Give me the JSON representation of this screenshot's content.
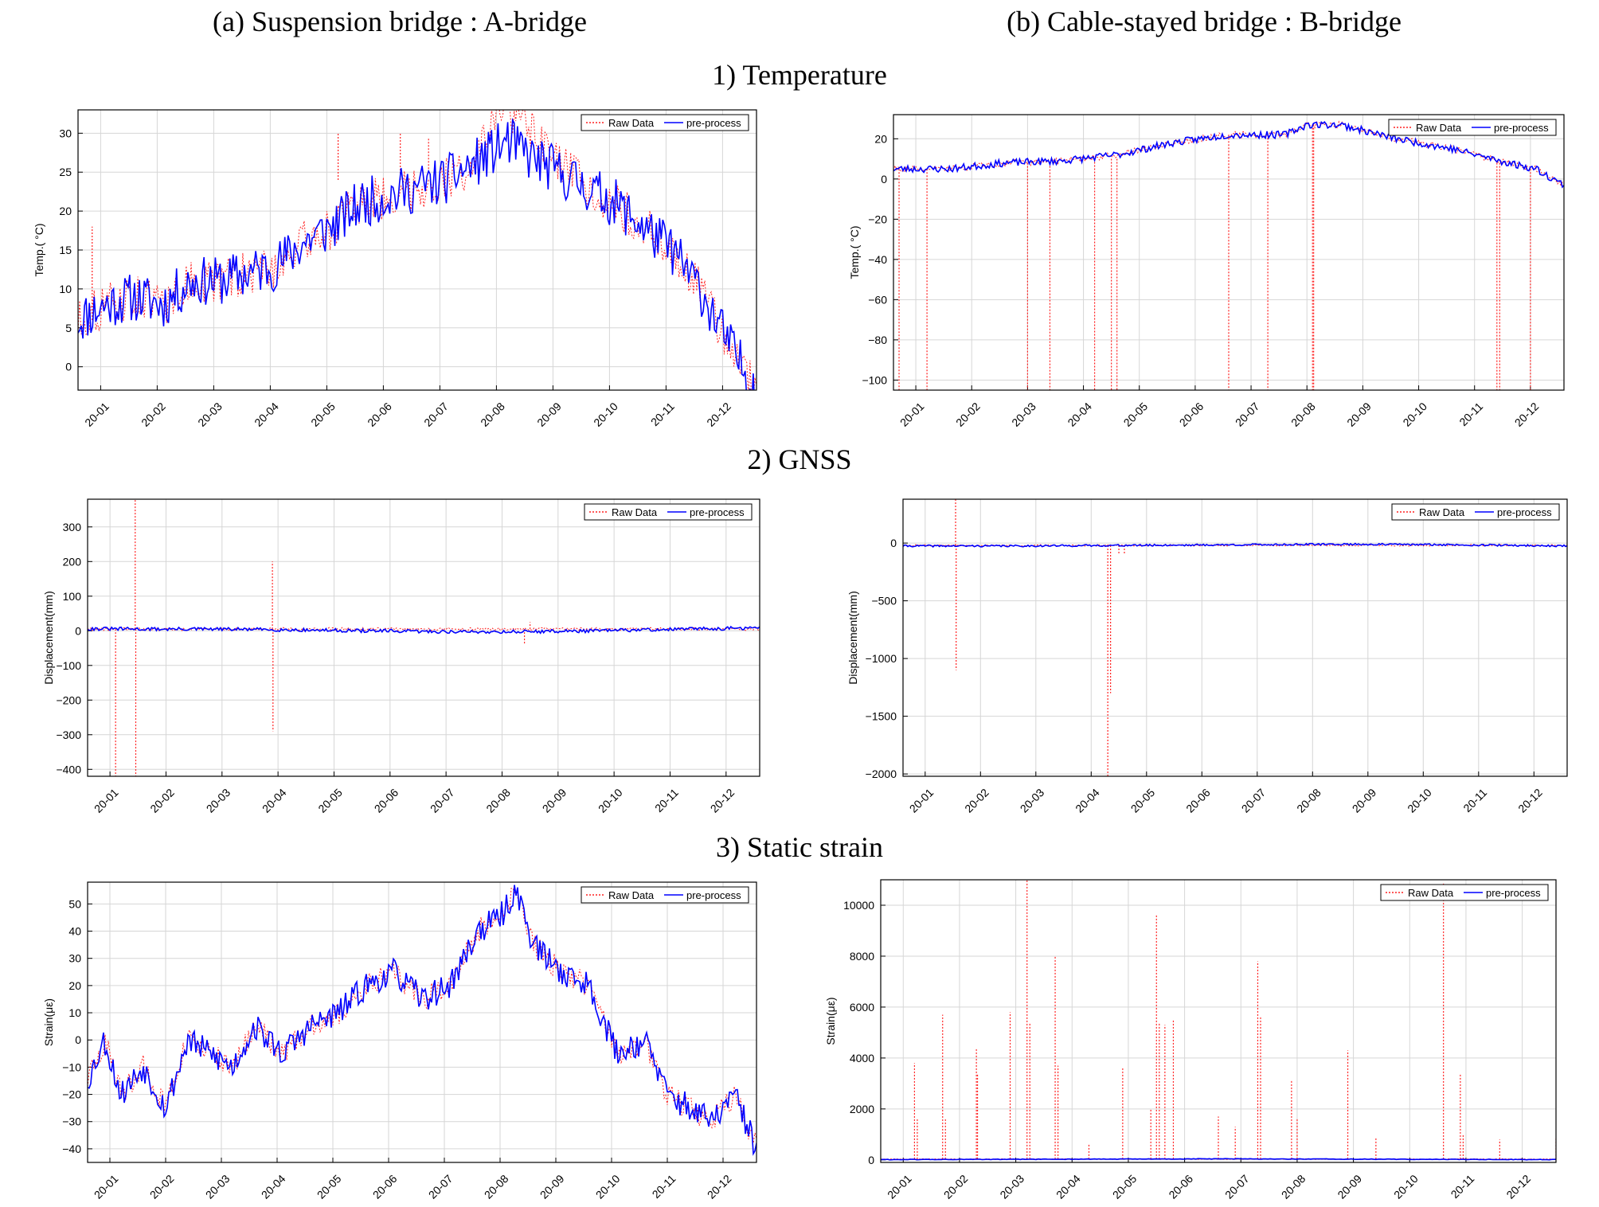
{
  "headings": {
    "col_a": "(a) Suspension bridge : A-bridge",
    "col_b": "(b) Cable-stayed bridge : B-bridge",
    "row_1": "1) Temperature",
    "row_2": "2) GNSS",
    "row_3": "3) Static strain"
  },
  "colors": {
    "raw": "#ff2020",
    "processed": "#0000ff",
    "grid": "#d6d6d6",
    "axis": "#000000"
  },
  "chart_data": [
    {
      "id": "temp-a",
      "type": "line",
      "ylabel": "Temp.( °C)",
      "ylim": [
        -3,
        33
      ],
      "yticks": [
        0,
        5,
        10,
        15,
        20,
        25,
        30
      ],
      "xlim": [
        0,
        12
      ],
      "xticks": [
        "20-01",
        "20-02",
        "20-03",
        "20-04",
        "20-05",
        "20-06",
        "20-07",
        "20-08",
        "20-09",
        "20-10",
        "20-11",
        "20-12"
      ],
      "legend": [
        "Raw Data",
        "pre-process"
      ],
      "legend_position": "top-right",
      "grid": true,
      "series": [
        {
          "name": "Raw Data",
          "style": "dotted",
          "x": [
            0.0,
            0.5,
            1.0,
            1.5,
            2.0,
            2.5,
            3.0,
            3.5,
            4.0,
            4.5,
            5.0,
            5.5,
            6.0,
            6.5,
            7.0,
            7.4,
            7.6,
            7.8,
            8.0,
            8.5,
            9.0,
            9.5,
            10.0,
            10.5,
            11.0,
            11.5,
            12.0
          ],
          "y": [
            6,
            8,
            9,
            8,
            11,
            11,
            12,
            13,
            16,
            18,
            21,
            22,
            23,
            24,
            26,
            32,
            33,
            32,
            30,
            26,
            23,
            21,
            18,
            15,
            10,
            3,
            -3
          ],
          "spikes": [
            [
              0.25,
              6,
              18
            ],
            [
              4.6,
              24,
              30
            ],
            [
              5.7,
              24,
              30
            ],
            [
              6.2,
              25,
              29.5
            ]
          ]
        },
        {
          "name": "pre-process",
          "style": "solid",
          "x": [
            0.0,
            0.5,
            1.0,
            1.5,
            2.0,
            2.5,
            3.0,
            3.5,
            4.0,
            4.5,
            5.0,
            5.5,
            6.0,
            6.5,
            7.0,
            7.4,
            7.6,
            7.8,
            8.0,
            8.5,
            9.0,
            9.5,
            10.0,
            10.5,
            11.0,
            11.5,
            12.0
          ],
          "y": [
            6,
            8,
            9,
            8,
            11,
            11,
            12,
            13,
            16,
            18,
            21,
            22,
            23,
            24,
            26,
            28,
            29,
            28,
            27,
            25,
            23,
            21,
            18,
            15,
            10,
            3,
            -3
          ],
          "noise": 3.2,
          "n": 420,
          "seed": 11
        }
      ]
    },
    {
      "id": "temp-b",
      "type": "line",
      "ylabel": "Temp.( °C)",
      "ylim": [
        -105,
        32
      ],
      "yticks": [
        -100,
        -80,
        -60,
        -40,
        -20,
        0,
        20
      ],
      "xlim": [
        0,
        12
      ],
      "xticks": [
        "20-01",
        "20-02",
        "20-03",
        "20-04",
        "20-05",
        "20-06",
        "20-07",
        "20-08",
        "20-09",
        "20-10",
        "20-11",
        "20-12"
      ],
      "legend": [
        "Raw Data",
        "pre-process"
      ],
      "legend_position": "top-right",
      "grid": true,
      "series": [
        {
          "name": "Raw Data",
          "style": "dotted",
          "x": [
            0.0,
            1.0,
            2.0,
            3.0,
            4.0,
            5.0,
            6.0,
            7.0,
            7.4,
            8.0,
            9.0,
            10.0,
            11.0,
            11.5,
            12.0
          ],
          "y": [
            5,
            5,
            8,
            9,
            12,
            18,
            22,
            22,
            27,
            27,
            20,
            15,
            8,
            5,
            -3
          ],
          "spikes": [
            [
              0.1,
              5,
              -105
            ],
            [
              0.6,
              5,
              -105
            ],
            [
              2.4,
              8,
              -105
            ],
            [
              2.8,
              8,
              -105
            ],
            [
              3.6,
              10,
              -105
            ],
            [
              3.9,
              10,
              -105
            ],
            [
              4.0,
              10,
              -105
            ],
            [
              6.0,
              22,
              -105
            ],
            [
              6.7,
              22,
              -105
            ],
            [
              7.5,
              27,
              -105
            ],
            [
              7.52,
              27,
              -105
            ],
            [
              10.8,
              8,
              -105
            ],
            [
              10.85,
              8,
              -105
            ],
            [
              11.4,
              5,
              -105
            ]
          ]
        },
        {
          "name": "pre-process",
          "style": "solid",
          "x": [
            0.0,
            1.0,
            2.0,
            3.0,
            4.0,
            5.0,
            6.0,
            7.0,
            7.4,
            8.0,
            9.0,
            10.0,
            11.0,
            11.5,
            12.0
          ],
          "y": [
            5,
            5,
            8,
            9,
            12,
            18,
            22,
            22,
            27,
            27,
            20,
            15,
            8,
            5,
            -3
          ],
          "noise": 1.8,
          "n": 420,
          "seed": 23
        }
      ]
    },
    {
      "id": "gnss-a",
      "type": "line",
      "ylabel": "Displacement(mm)",
      "ylim": [
        -420,
        380
      ],
      "yticks": [
        -400,
        -300,
        -200,
        -100,
        0,
        100,
        200,
        300
      ],
      "xlim": [
        0,
        12
      ],
      "xticks": [
        "20-01",
        "20-02",
        "20-03",
        "20-04",
        "20-05",
        "20-06",
        "20-07",
        "20-08",
        "20-09",
        "20-10",
        "20-11",
        "20-12"
      ],
      "legend": [
        "Raw Data",
        "pre-process"
      ],
      "legend_position": "top-right",
      "grid": true,
      "series": [
        {
          "name": "Raw Data",
          "style": "dotted",
          "x": [
            0,
            12
          ],
          "y": [
            5,
            5
          ],
          "spikes": [
            [
              0.5,
              5,
              -420
            ],
            [
              0.85,
              5,
              380
            ],
            [
              0.86,
              5,
              -420
            ],
            [
              3.3,
              5,
              200
            ],
            [
              3.31,
              5,
              -290
            ],
            [
              7.8,
              5,
              -40
            ],
            [
              7.9,
              5,
              25
            ]
          ]
        },
        {
          "name": "pre-process",
          "style": "solid",
          "x": [
            0,
            1,
            2,
            3,
            4,
            5,
            6,
            7,
            8,
            9,
            10,
            11,
            12
          ],
          "y": [
            6,
            5,
            5,
            4,
            2,
            0,
            -2,
            -3,
            -2,
            0,
            3,
            6,
            8
          ],
          "noise": 5,
          "n": 420,
          "seed": 31
        }
      ]
    },
    {
      "id": "gnss-b",
      "type": "line",
      "ylabel": "Displacement(mm)",
      "ylim": [
        -2020,
        380
      ],
      "yticks": [
        -2000,
        -1500,
        -1000,
        -500,
        0
      ],
      "xlim": [
        0,
        12
      ],
      "xticks": [
        "20-01",
        "20-02",
        "20-03",
        "20-04",
        "20-05",
        "20-06",
        "20-07",
        "20-08",
        "20-09",
        "20-10",
        "20-11",
        "20-12"
      ],
      "legend": [
        "Raw Data",
        "pre-process"
      ],
      "legend_position": "top-right",
      "grid": true,
      "series": [
        {
          "name": "Raw Data",
          "style": "dotted",
          "x": [
            0,
            12
          ],
          "y": [
            -20,
            -20
          ],
          "spikes": [
            [
              0.95,
              -20,
              380
            ],
            [
              0.96,
              -20,
              -1100
            ],
            [
              3.7,
              -20,
              -2020
            ],
            [
              3.75,
              -20,
              -1300
            ],
            [
              3.9,
              -20,
              -100
            ],
            [
              4.0,
              -20,
              -90
            ]
          ]
        },
        {
          "name": "pre-process",
          "style": "solid",
          "x": [
            0,
            2,
            4,
            6,
            8,
            10,
            12
          ],
          "y": [
            -25,
            -25,
            -20,
            -15,
            -10,
            -15,
            -25
          ],
          "noise": 8,
          "n": 420,
          "seed": 41
        }
      ]
    },
    {
      "id": "strain-a",
      "type": "line",
      "ylabel": "Strain(με)",
      "ylim": [
        -45,
        58
      ],
      "yticks": [
        -40,
        -30,
        -20,
        -10,
        0,
        10,
        20,
        30,
        40,
        50
      ],
      "xlim": [
        0,
        12
      ],
      "xticks": [
        "20-01",
        "20-02",
        "20-03",
        "20-04",
        "20-05",
        "20-06",
        "20-07",
        "20-08",
        "20-09",
        "20-10",
        "20-11",
        "20-12"
      ],
      "legend": [
        "Raw Data",
        "pre-process"
      ],
      "legend_position": "top-right",
      "grid": true,
      "series": [
        {
          "name": "Raw Data",
          "style": "dotted",
          "x": [
            0.0,
            0.3,
            0.6,
            1.0,
            1.4,
            1.8,
            2.2,
            2.6,
            3.0,
            3.5,
            4.0,
            4.5,
            5.0,
            5.5,
            6.0,
            6.5,
            7.0,
            7.4,
            7.7,
            8.0,
            8.5,
            9.0,
            9.5,
            10.0,
            10.4,
            10.8,
            11.2,
            11.6,
            12.0
          ],
          "y": [
            -15,
            0,
            -20,
            -10,
            -25,
            0,
            -5,
            -10,
            5,
            -5,
            5,
            10,
            20,
            25,
            15,
            20,
            40,
            45,
            55,
            35,
            25,
            20,
            -5,
            0,
            -20,
            -25,
            -30,
            -20,
            -40
          ],
          "spikes": []
        },
        {
          "name": "pre-process",
          "style": "solid",
          "x": [
            0.0,
            0.3,
            0.6,
            1.0,
            1.4,
            1.8,
            2.2,
            2.6,
            3.0,
            3.5,
            4.0,
            4.5,
            5.0,
            5.5,
            6.0,
            6.5,
            7.0,
            7.4,
            7.7,
            8.0,
            8.5,
            9.0,
            9.5,
            10.0,
            10.4,
            10.8,
            11.2,
            11.6,
            12.0
          ],
          "y": [
            -15,
            0,
            -20,
            -10,
            -25,
            0,
            -5,
            -10,
            5,
            -5,
            5,
            10,
            20,
            25,
            15,
            20,
            40,
            45,
            55,
            35,
            25,
            20,
            -5,
            0,
            -20,
            -25,
            -30,
            -20,
            -40
          ],
          "noise": 5,
          "n": 420,
          "seed": 53
        }
      ]
    },
    {
      "id": "strain-b",
      "type": "line",
      "ylabel": "Strain(με)",
      "ylim": [
        -100,
        11000
      ],
      "yticks": [
        0,
        2000,
        4000,
        6000,
        8000,
        10000
      ],
      "xlim": [
        0,
        12
      ],
      "xticks": [
        "20-01",
        "20-02",
        "20-03",
        "20-04",
        "20-05",
        "20-06",
        "20-07",
        "20-08",
        "20-09",
        "20-10",
        "20-11",
        "20-12"
      ],
      "legend": [
        "Raw Data",
        "pre-process"
      ],
      "legend_position": "top-right",
      "grid": true,
      "series": [
        {
          "name": "Raw Data",
          "style": "dotted",
          "x": [
            0,
            12
          ],
          "y": [
            30,
            30
          ],
          "spikes": [
            [
              0.6,
              30,
              3800
            ],
            [
              0.65,
              30,
              1600
            ],
            [
              1.1,
              30,
              5700
            ],
            [
              1.15,
              30,
              1600
            ],
            [
              1.7,
              30,
              4400
            ],
            [
              1.72,
              30,
              3400
            ],
            [
              2.3,
              30,
              5800
            ],
            [
              2.6,
              30,
              11000
            ],
            [
              2.65,
              30,
              5400
            ],
            [
              3.1,
              30,
              8000
            ],
            [
              3.15,
              30,
              3700
            ],
            [
              3.7,
              30,
              600
            ],
            [
              4.3,
              30,
              3600
            ],
            [
              4.8,
              30,
              2000
            ],
            [
              4.9,
              30,
              9600
            ],
            [
              4.95,
              30,
              5400
            ],
            [
              5.05,
              30,
              5300
            ],
            [
              5.2,
              30,
              5500
            ],
            [
              6.0,
              30,
              1700
            ],
            [
              6.3,
              30,
              1300
            ],
            [
              6.7,
              30,
              7800
            ],
            [
              6.75,
              30,
              5600
            ],
            [
              7.3,
              30,
              3100
            ],
            [
              7.4,
              30,
              1600
            ],
            [
              8.3,
              30,
              4300
            ],
            [
              8.8,
              30,
              900
            ],
            [
              10.0,
              30,
              10900
            ],
            [
              10.3,
              30,
              3400
            ],
            [
              10.35,
              30,
              1000
            ],
            [
              11.0,
              30,
              800
            ],
            [
              12.0,
              30,
              900
            ]
          ]
        },
        {
          "name": "pre-process",
          "style": "solid",
          "x": [
            0,
            6,
            12
          ],
          "y": [
            10,
            40,
            10
          ],
          "noise": 12,
          "n": 300,
          "seed": 61
        }
      ]
    }
  ]
}
